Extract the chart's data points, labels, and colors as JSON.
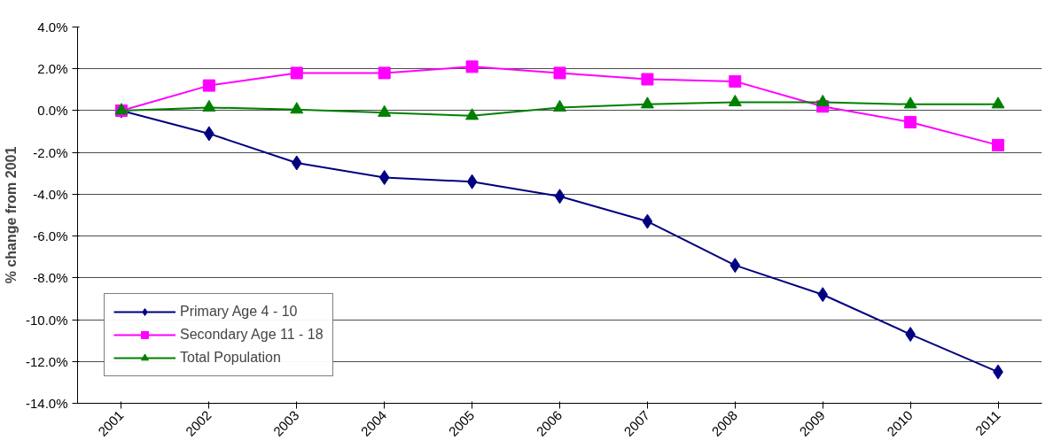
{
  "chart_data": {
    "type": "line",
    "ylabel": "% change from 2001",
    "categories": [
      "2001",
      "2002",
      "2003",
      "2004",
      "2005",
      "2006",
      "2007",
      "2008",
      "2009",
      "2010",
      "2011"
    ],
    "series": [
      {
        "name": "Primary Age 4 - 10",
        "color": "#000080",
        "marker": "diamond",
        "values": [
          0,
          -1.1,
          -2.5,
          -3.2,
          -3.4,
          -4.1,
          -5.3,
          -7.4,
          -8.8,
          -10.7,
          -12.5
        ]
      },
      {
        "name": "Secondary Age 11 - 18",
        "color": "#ff00ff",
        "marker": "square",
        "values": [
          0,
          1.2,
          1.8,
          1.8,
          2.1,
          1.8,
          1.5,
          1.4,
          0.2,
          -0.55,
          -1.65
        ]
      },
      {
        "name": "Total Population",
        "color": "#008000",
        "marker": "triangle",
        "values": [
          0,
          0.15,
          0.05,
          -0.1,
          -0.25,
          0.15,
          0.3,
          0.4,
          0.4,
          0.3,
          0.3
        ]
      }
    ],
    "ylim": [
      -14,
      4
    ],
    "yticks": [
      {
        "value": -14,
        "label": "-14.0%"
      },
      {
        "value": -12,
        "label": "-12.0%"
      },
      {
        "value": -10,
        "label": "-10.0%"
      },
      {
        "value": -8,
        "label": "-8.0%"
      },
      {
        "value": -6,
        "label": "-6.0%"
      },
      {
        "value": -4,
        "label": "-4.0%"
      },
      {
        "value": -2,
        "label": "-2.0%"
      },
      {
        "value": 0,
        "label": "0.0%"
      },
      {
        "value": 2,
        "label": "2.0%"
      },
      {
        "value": 4,
        "label": "4.0%"
      }
    ],
    "grid": "y",
    "legend": "bottom left"
  }
}
